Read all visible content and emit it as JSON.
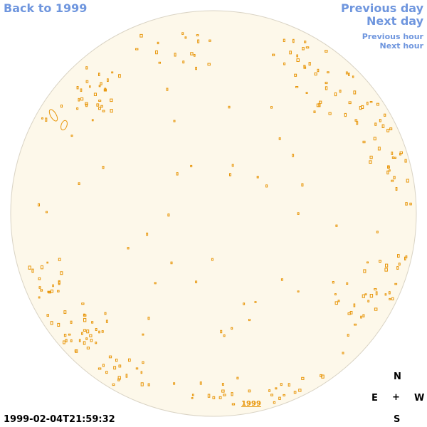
{
  "navigation": {
    "back_label": "Back to 1999",
    "previous_day_label": "Previous day",
    "next_day_label": "Next day",
    "previous_hour_label": "Previous hour",
    "next_hour_label": "Next hour"
  },
  "map": {
    "year_label": "1999",
    "timestamp": "1999-02-04T21:59:32"
  },
  "compass": {
    "north": "N",
    "east": "E",
    "center": "+",
    "west": "W",
    "south": "S"
  },
  "colors": {
    "link": "#6f96de",
    "disk_fill": "#fdf8ea",
    "disk_edge": "#d9d3c4",
    "region_outline": "#e8960a"
  }
}
